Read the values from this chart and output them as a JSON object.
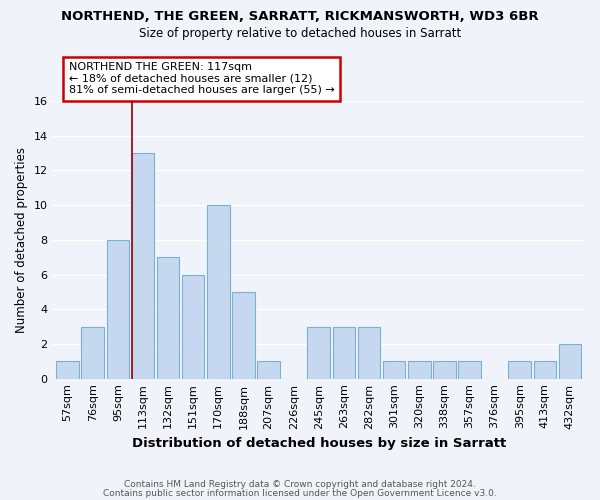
{
  "title": "NORTHEND, THE GREEN, SARRATT, RICKMANSWORTH, WD3 6BR",
  "subtitle": "Size of property relative to detached houses in Sarratt",
  "xlabel": "Distribution of detached houses by size in Sarratt",
  "ylabel": "Number of detached properties",
  "categories": [
    "57sqm",
    "76sqm",
    "95sqm",
    "113sqm",
    "132sqm",
    "151sqm",
    "170sqm",
    "188sqm",
    "207sqm",
    "226sqm",
    "245sqm",
    "263sqm",
    "282sqm",
    "301sqm",
    "320sqm",
    "338sqm",
    "357sqm",
    "376sqm",
    "395sqm",
    "413sqm",
    "432sqm"
  ],
  "values": [
    1,
    3,
    8,
    13,
    7,
    6,
    10,
    5,
    1,
    0,
    3,
    3,
    3,
    1,
    1,
    1,
    1,
    0,
    1,
    1,
    2
  ],
  "bar_color": "#c5d8f0",
  "bar_edge_color": "#7aafd4",
  "red_line_index": 3,
  "annotation_text": "NORTHEND THE GREEN: 117sqm\n← 18% of detached houses are smaller (12)\n81% of semi-detached houses are larger (55) →",
  "annotation_box_color": "#ffffff",
  "annotation_box_edge": "#cc0000",
  "footer_line1": "Contains HM Land Registry data © Crown copyright and database right 2024.",
  "footer_line2": "Contains public sector information licensed under the Open Government Licence v3.0.",
  "bg_color": "#f0f4fa",
  "grid_color": "#ffffff",
  "ylim": [
    0,
    16
  ],
  "yticks": [
    0,
    2,
    4,
    6,
    8,
    10,
    12,
    14,
    16
  ],
  "title_fontsize": 9.5,
  "subtitle_fontsize": 8.5,
  "ylabel_fontsize": 8.5,
  "xlabel_fontsize": 9.5,
  "tick_fontsize": 8,
  "annot_fontsize": 8
}
